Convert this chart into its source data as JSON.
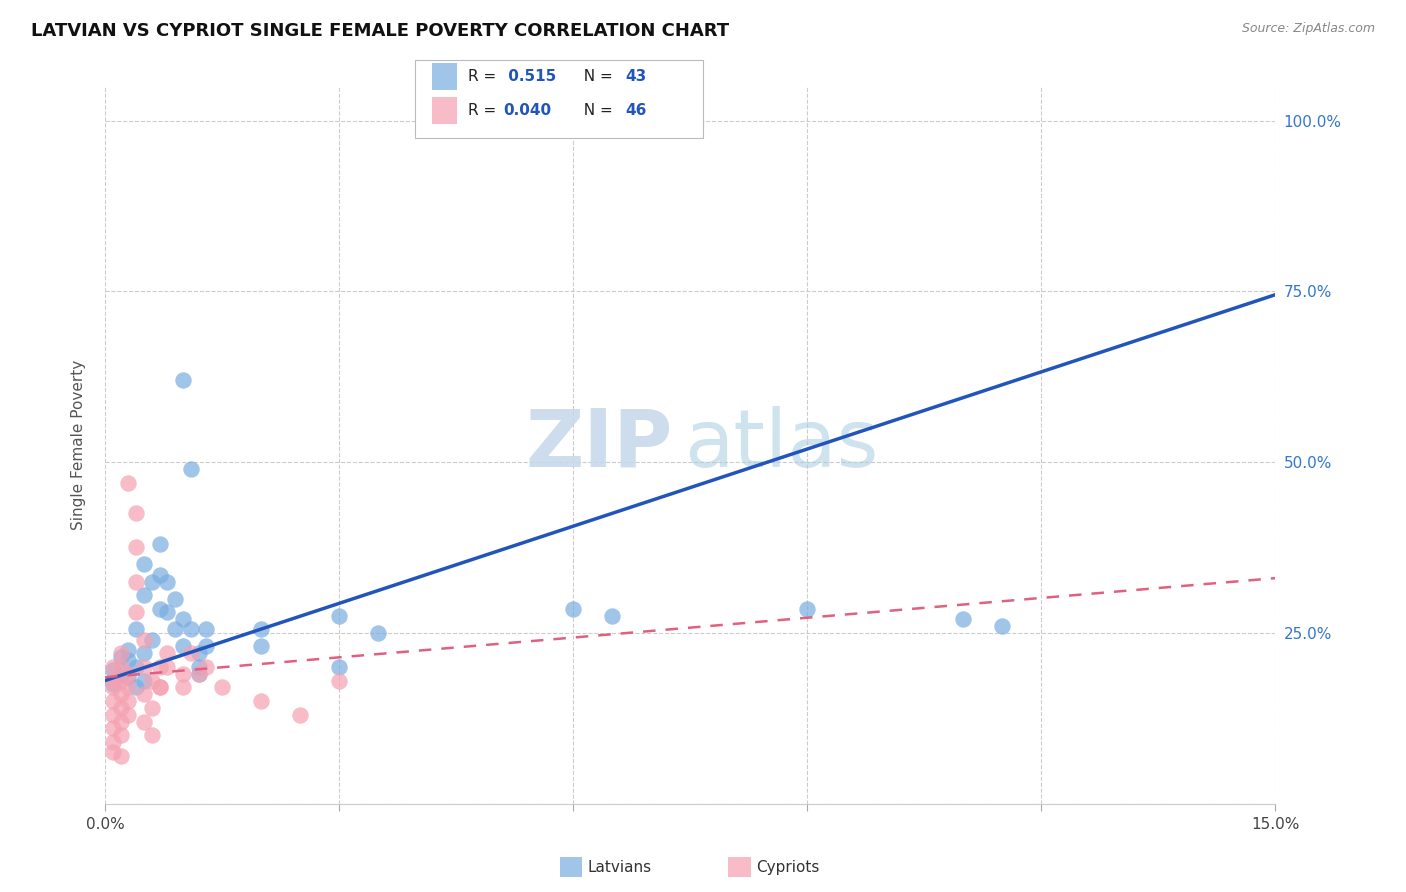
{
  "title": "LATVIAN VS CYPRIOT SINGLE FEMALE POVERTY CORRELATION CHART",
  "source": "Source: ZipAtlas.com",
  "ylabel_label": "Single Female Poverty",
  "xlim": [
    0.0,
    0.15
  ],
  "ylim": [
    0.0,
    1.05
  ],
  "xtick_vals": [
    0.0,
    0.03,
    0.06,
    0.09,
    0.12,
    0.15
  ],
  "ytick_vals": [
    0.0,
    0.25,
    0.5,
    0.75,
    1.0
  ],
  "ytick_labels": [
    "",
    "25.0%",
    "50.0%",
    "75.0%",
    "100.0%"
  ],
  "grid_color": "#cccccc",
  "background_color": "#ffffff",
  "legend_r1_text": "R = ",
  "legend_r1_val": " 0.515",
  "legend_n1_text": "N = ",
  "legend_n1_val": "43",
  "legend_r2_text": "R = ",
  "legend_r2_val": "0.040",
  "legend_n2_text": "N = ",
  "legend_n2_val": "46",
  "latvian_color": "#7aade0",
  "cypriot_color": "#f5a0b0",
  "latvian_line_color": "#2255bb",
  "cypriot_line_color": "#e06080",
  "latvian_points": [
    [
      0.001,
      0.195
    ],
    [
      0.001,
      0.175
    ],
    [
      0.002,
      0.215
    ],
    [
      0.002,
      0.19
    ],
    [
      0.003,
      0.21
    ],
    [
      0.003,
      0.185
    ],
    [
      0.003,
      0.225
    ],
    [
      0.004,
      0.2
    ],
    [
      0.004,
      0.17
    ],
    [
      0.004,
      0.255
    ],
    [
      0.005,
      0.22
    ],
    [
      0.005,
      0.18
    ],
    [
      0.005,
      0.305
    ],
    [
      0.005,
      0.35
    ],
    [
      0.006,
      0.24
    ],
    [
      0.006,
      0.325
    ],
    [
      0.007,
      0.285
    ],
    [
      0.007,
      0.335
    ],
    [
      0.007,
      0.38
    ],
    [
      0.008,
      0.325
    ],
    [
      0.008,
      0.28
    ],
    [
      0.009,
      0.255
    ],
    [
      0.009,
      0.3
    ],
    [
      0.01,
      0.27
    ],
    [
      0.01,
      0.23
    ],
    [
      0.01,
      0.62
    ],
    [
      0.011,
      0.49
    ],
    [
      0.011,
      0.255
    ],
    [
      0.012,
      0.2
    ],
    [
      0.012,
      0.22
    ],
    [
      0.012,
      0.19
    ],
    [
      0.013,
      0.23
    ],
    [
      0.013,
      0.255
    ],
    [
      0.02,
      0.255
    ],
    [
      0.02,
      0.23
    ],
    [
      0.03,
      0.275
    ],
    [
      0.03,
      0.2
    ],
    [
      0.035,
      0.25
    ],
    [
      0.06,
      0.285
    ],
    [
      0.065,
      0.275
    ],
    [
      0.09,
      0.285
    ],
    [
      0.11,
      0.27
    ],
    [
      0.115,
      0.26
    ]
  ],
  "cypriot_points": [
    [
      0.001,
      0.2
    ],
    [
      0.001,
      0.18
    ],
    [
      0.001,
      0.17
    ],
    [
      0.001,
      0.15
    ],
    [
      0.001,
      0.13
    ],
    [
      0.001,
      0.11
    ],
    [
      0.001,
      0.09
    ],
    [
      0.001,
      0.075
    ],
    [
      0.002,
      0.22
    ],
    [
      0.002,
      0.2
    ],
    [
      0.002,
      0.18
    ],
    [
      0.002,
      0.16
    ],
    [
      0.002,
      0.14
    ],
    [
      0.002,
      0.12
    ],
    [
      0.002,
      0.1
    ],
    [
      0.002,
      0.07
    ],
    [
      0.003,
      0.19
    ],
    [
      0.003,
      0.17
    ],
    [
      0.003,
      0.15
    ],
    [
      0.003,
      0.13
    ],
    [
      0.003,
      0.47
    ],
    [
      0.004,
      0.425
    ],
    [
      0.004,
      0.375
    ],
    [
      0.004,
      0.325
    ],
    [
      0.004,
      0.28
    ],
    [
      0.005,
      0.24
    ],
    [
      0.005,
      0.2
    ],
    [
      0.005,
      0.16
    ],
    [
      0.005,
      0.12
    ],
    [
      0.006,
      0.18
    ],
    [
      0.006,
      0.14
    ],
    [
      0.006,
      0.1
    ],
    [
      0.007,
      0.17
    ],
    [
      0.007,
      0.2
    ],
    [
      0.007,
      0.17
    ],
    [
      0.008,
      0.2
    ],
    [
      0.008,
      0.22
    ],
    [
      0.01,
      0.19
    ],
    [
      0.01,
      0.17
    ],
    [
      0.011,
      0.22
    ],
    [
      0.012,
      0.19
    ],
    [
      0.013,
      0.2
    ],
    [
      0.015,
      0.17
    ],
    [
      0.02,
      0.15
    ],
    [
      0.025,
      0.13
    ],
    [
      0.03,
      0.18
    ]
  ],
  "latvian_trendline": [
    [
      0.0,
      0.18
    ],
    [
      0.15,
      0.745
    ]
  ],
  "cypriot_trendline": [
    [
      0.0,
      0.185
    ],
    [
      0.15,
      0.33
    ]
  ]
}
